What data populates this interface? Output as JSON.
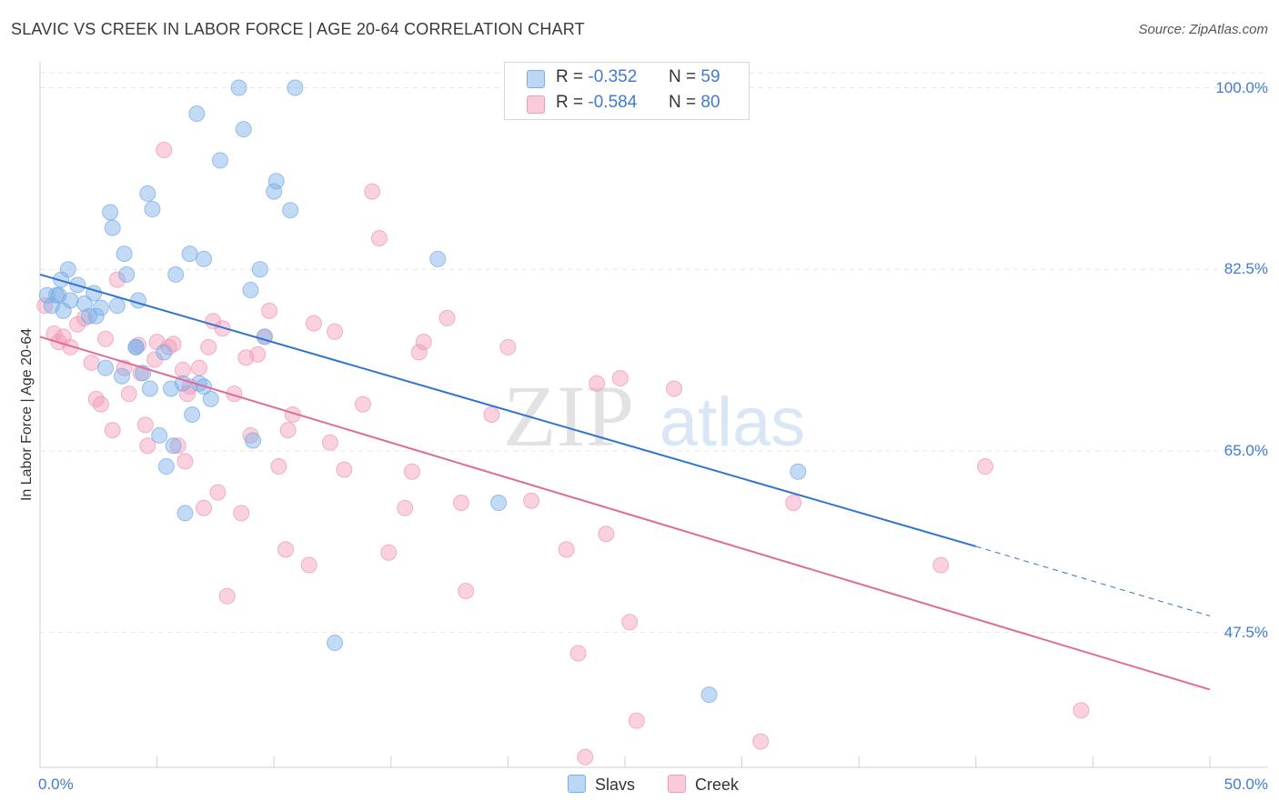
{
  "header": {
    "title": "SLAVIC VS CREEK IN LABOR FORCE | AGE 20-64 CORRELATION CHART",
    "source": "Source: ZipAtlas.com"
  },
  "watermark": {
    "zip": "ZIP",
    "atlas": "atlas"
  },
  "legend": {
    "series": [
      {
        "r_label": "R =",
        "r_value": "-0.352",
        "n_label": "N =",
        "n_value": "59"
      },
      {
        "r_label": "R =",
        "r_value": "-0.584",
        "n_label": "N =",
        "n_value": "80"
      }
    ]
  },
  "chart_data": {
    "type": "scatter",
    "title": "SLAVIC VS CREEK IN LABOR FORCE | AGE 20-64 CORRELATION CHART",
    "xlabel": "",
    "ylabel": "In Labor Force | Age 20-64",
    "xlim": [
      0,
      50
    ],
    "ylim": [
      34.5,
      102.5
    ],
    "x_tick_labels": [
      "0.0%",
      "50.0%"
    ],
    "y_ticks": [
      47.5,
      65.0,
      82.5,
      100.0
    ],
    "y_tick_labels": [
      "47.5%",
      "65.0%",
      "82.5%",
      "100.0%"
    ],
    "grid": true,
    "colors": {
      "Slavs": "#7aaee8",
      "Creek": "#f29ab7",
      "Slavs_line": "#2f74d0",
      "Creek_line": "#e06b97"
    },
    "series": [
      {
        "name": "Slavs",
        "trend": {
          "x0": 0,
          "y0": 82.0,
          "x1": 40,
          "y1": 55.8,
          "dashed_to_x": 50,
          "dashed_to_y": 49.1
        },
        "points": [
          [
            0.3,
            80.0
          ],
          [
            0.5,
            79.0
          ],
          [
            0.7,
            80.0
          ],
          [
            0.8,
            80.0
          ],
          [
            0.9,
            81.5
          ],
          [
            1.0,
            78.5
          ],
          [
            1.2,
            82.5
          ],
          [
            1.3,
            79.5
          ],
          [
            1.6,
            81.0
          ],
          [
            1.9,
            79.2
          ],
          [
            2.1,
            78.0
          ],
          [
            2.3,
            80.2
          ],
          [
            2.6,
            78.8
          ],
          [
            2.8,
            73.0
          ],
          [
            3.0,
            88.0
          ],
          [
            3.1,
            86.5
          ],
          [
            3.3,
            79.0
          ],
          [
            3.6,
            84.0
          ],
          [
            3.7,
            82.0
          ],
          [
            4.1,
            75.0
          ],
          [
            4.2,
            79.5
          ],
          [
            4.4,
            72.5
          ],
          [
            4.6,
            89.8
          ],
          [
            4.7,
            71.0
          ],
          [
            4.8,
            88.3
          ],
          [
            5.1,
            66.5
          ],
          [
            5.3,
            74.5
          ],
          [
            5.4,
            63.5
          ],
          [
            5.6,
            71.0
          ],
          [
            5.7,
            65.5
          ],
          [
            5.8,
            82.0
          ],
          [
            6.1,
            71.5
          ],
          [
            6.2,
            59.0
          ],
          [
            6.4,
            84.0
          ],
          [
            6.5,
            68.5
          ],
          [
            6.7,
            97.5
          ],
          [
            6.8,
            71.5
          ],
          [
            7.0,
            83.5
          ],
          [
            7.3,
            70.0
          ],
          [
            7.7,
            93.0
          ],
          [
            8.5,
            100.0
          ],
          [
            8.7,
            96.0
          ],
          [
            9.0,
            80.5
          ],
          [
            9.1,
            66.0
          ],
          [
            9.4,
            82.5
          ],
          [
            9.6,
            76.0
          ],
          [
            10.0,
            90.0
          ],
          [
            10.1,
            91.0
          ],
          [
            10.7,
            88.2
          ],
          [
            10.9,
            100.0
          ],
          [
            12.6,
            46.5
          ],
          [
            17.0,
            83.5
          ],
          [
            19.6,
            60.0
          ],
          [
            28.6,
            41.5
          ],
          [
            32.4,
            63.0
          ],
          [
            2.4,
            78.0
          ],
          [
            3.5,
            72.2
          ],
          [
            4.1,
            75.0
          ],
          [
            7.0,
            71.2
          ]
        ]
      },
      {
        "name": "Creek",
        "trend": {
          "x0": 0,
          "y0": 76.0,
          "x1": 50,
          "y1": 42.0
        },
        "points": [
          [
            0.2,
            79.0
          ],
          [
            0.6,
            76.3
          ],
          [
            0.8,
            75.5
          ],
          [
            1.0,
            76.0
          ],
          [
            1.3,
            75.0
          ],
          [
            1.6,
            77.2
          ],
          [
            1.9,
            77.8
          ],
          [
            2.2,
            73.5
          ],
          [
            2.4,
            70.0
          ],
          [
            2.6,
            69.5
          ],
          [
            2.8,
            75.8
          ],
          [
            3.1,
            67.0
          ],
          [
            3.3,
            81.5
          ],
          [
            3.6,
            73.0
          ],
          [
            3.8,
            70.5
          ],
          [
            4.2,
            75.2
          ],
          [
            4.3,
            72.5
          ],
          [
            4.5,
            67.5
          ],
          [
            4.6,
            65.5
          ],
          [
            4.9,
            73.8
          ],
          [
            5.0,
            75.5
          ],
          [
            5.3,
            94.0
          ],
          [
            5.5,
            75.0
          ],
          [
            5.7,
            75.3
          ],
          [
            5.9,
            65.5
          ],
          [
            6.1,
            72.8
          ],
          [
            6.2,
            64.0
          ],
          [
            6.3,
            70.5
          ],
          [
            6.4,
            71.2
          ],
          [
            6.8,
            73.0
          ],
          [
            7.0,
            59.5
          ],
          [
            7.2,
            75.0
          ],
          [
            7.4,
            77.5
          ],
          [
            7.6,
            61.0
          ],
          [
            7.8,
            76.8
          ],
          [
            8.0,
            51.0
          ],
          [
            8.3,
            70.5
          ],
          [
            8.6,
            59.0
          ],
          [
            8.8,
            74.0
          ],
          [
            9.0,
            66.5
          ],
          [
            9.3,
            74.3
          ],
          [
            9.6,
            76.0
          ],
          [
            9.8,
            78.5
          ],
          [
            10.2,
            63.5
          ],
          [
            10.5,
            55.5
          ],
          [
            10.6,
            67.0
          ],
          [
            10.8,
            68.5
          ],
          [
            11.5,
            54.0
          ],
          [
            11.7,
            77.3
          ],
          [
            12.4,
            65.8
          ],
          [
            12.6,
            76.5
          ],
          [
            13.0,
            63.2
          ],
          [
            13.8,
            69.5
          ],
          [
            14.2,
            90.0
          ],
          [
            14.5,
            85.5
          ],
          [
            14.9,
            55.2
          ],
          [
            15.6,
            59.5
          ],
          [
            15.9,
            63.0
          ],
          [
            16.2,
            74.5
          ],
          [
            16.4,
            75.5
          ],
          [
            17.4,
            77.8
          ],
          [
            18.0,
            60.0
          ],
          [
            18.2,
            51.5
          ],
          [
            19.3,
            68.5
          ],
          [
            20.0,
            75.0
          ],
          [
            21.0,
            60.2
          ],
          [
            22.5,
            55.5
          ],
          [
            23.0,
            45.5
          ],
          [
            23.3,
            35.5
          ],
          [
            23.8,
            71.5
          ],
          [
            24.2,
            57.0
          ],
          [
            24.8,
            72.0
          ],
          [
            25.2,
            48.5
          ],
          [
            25.5,
            39.0
          ],
          [
            27.1,
            71.0
          ],
          [
            30.8,
            37.0
          ],
          [
            32.2,
            60.0
          ],
          [
            38.5,
            54.0
          ],
          [
            40.4,
            63.5
          ],
          [
            44.5,
            40.0
          ]
        ]
      }
    ]
  },
  "bottom_legend": {
    "items": [
      "Slavs",
      "Creek"
    ]
  }
}
